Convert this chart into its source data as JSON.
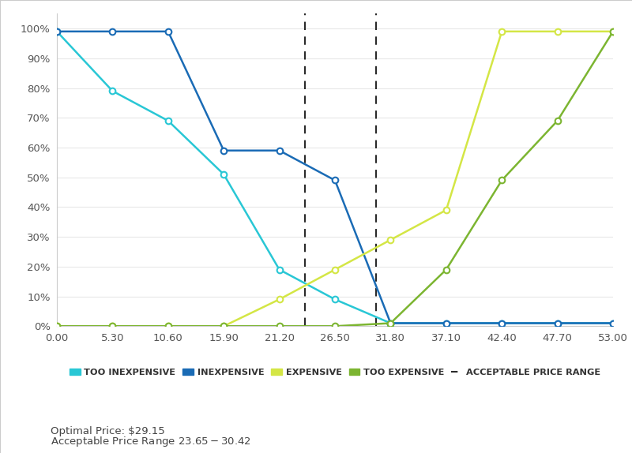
{
  "x_ticks": [
    0.0,
    5.3,
    10.6,
    15.9,
    21.2,
    26.5,
    31.8,
    37.1,
    42.4,
    47.7,
    53.0
  ],
  "too_inexpensive": {
    "x": [
      0.0,
      5.3,
      10.6,
      15.9,
      21.2,
      26.5,
      31.8,
      37.1,
      42.4,
      47.7,
      53.0
    ],
    "y": [
      0.99,
      0.79,
      0.69,
      0.51,
      0.19,
      0.09,
      0.01,
      0.01,
      0.01,
      0.01,
      0.01
    ],
    "color": "#29C7D5",
    "label": "TOO INEXPENSIVE"
  },
  "inexpensive": {
    "x": [
      0.0,
      5.3,
      10.6,
      15.9,
      21.2,
      26.5,
      31.8,
      37.1,
      42.4,
      47.7,
      53.0
    ],
    "y": [
      0.99,
      0.99,
      0.99,
      0.59,
      0.59,
      0.49,
      0.01,
      0.01,
      0.01,
      0.01,
      0.01
    ],
    "color": "#1A6BB5",
    "label": "INEXPENSIVE"
  },
  "expensive": {
    "x": [
      0.0,
      5.3,
      10.6,
      15.9,
      21.2,
      26.5,
      31.8,
      37.1,
      42.4,
      47.7,
      53.0
    ],
    "y": [
      0.0,
      0.0,
      0.0,
      0.0,
      0.09,
      0.19,
      0.29,
      0.39,
      0.99,
      0.99,
      0.99
    ],
    "color": "#D4E645",
    "label": "EXPENSIVE"
  },
  "too_expensive": {
    "x": [
      0.0,
      5.3,
      10.6,
      15.9,
      21.2,
      26.5,
      31.8,
      37.1,
      42.4,
      47.7,
      53.0
    ],
    "y": [
      0.0,
      0.0,
      0.0,
      0.0,
      0.0,
      0.0,
      0.01,
      0.19,
      0.49,
      0.69,
      0.99
    ],
    "color": "#7CB531",
    "label": "TOO EXPENSIVE"
  },
  "vline1_x": 23.65,
  "vline2_x": 30.42,
  "annotation_text1": "Optimal Price: $29.15",
  "annotation_text2": "Acceptable Price Range $23.65 - $30.42",
  "xlim": [
    0.0,
    53.0
  ],
  "ylim": [
    0.0,
    1.05
  ],
  "background_color": "#FFFFFF",
  "grid_color": "#E8E8E8",
  "legend_label_acceptable": "ACCEPTABLE PRICE RANGE"
}
